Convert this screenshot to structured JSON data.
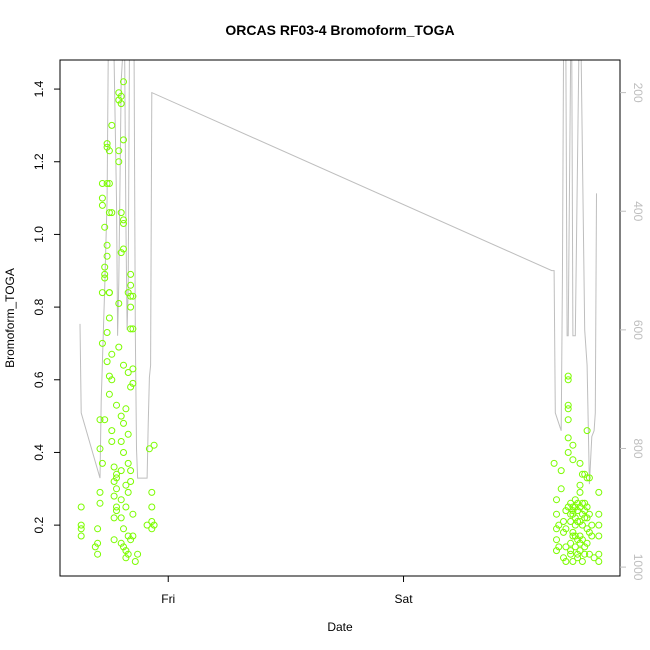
{
  "chart_data": {
    "type": "scatter",
    "title": "ORCAS RF03-4 Bromoform_TOGA",
    "xlabel": "Date",
    "ylabel": "Bromoform_TOGA",
    "x_ticks": [
      "Fri",
      "Sat"
    ],
    "y_ticks": [
      "0.2",
      "0.4",
      "0.6",
      "0.8",
      "1.0",
      "1.2",
      "1.4"
    ],
    "y_right_ticks": [
      "200",
      "400",
      "600",
      "800",
      "1000"
    ],
    "x_range_days": [
      -0.46,
      1.92
    ],
    "y_range": [
      0.06,
      1.48
    ],
    "y_right_range": [
      1015,
      145
    ],
    "y_right_reversed": true,
    "grid": false,
    "colors": {
      "points": "#7cfc00",
      "line": "#bebebe",
      "axis": "#000000"
    },
    "series": [
      {
        "kind": "points",
        "points": [
          [
            -0.37,
            0.25
          ],
          [
            -0.37,
            0.2
          ],
          [
            -0.37,
            0.19
          ],
          [
            -0.37,
            0.17
          ],
          [
            -0.31,
            0.14
          ],
          [
            -0.3,
            0.19
          ],
          [
            -0.3,
            0.12
          ],
          [
            -0.3,
            0.15
          ],
          [
            -0.29,
            0.26
          ],
          [
            -0.29,
            0.29
          ],
          [
            -0.29,
            0.41
          ],
          [
            -0.29,
            0.49
          ],
          [
            -0.28,
            0.37
          ],
          [
            -0.28,
            0.84
          ],
          [
            -0.28,
            0.7
          ],
          [
            -0.28,
            1.1
          ],
          [
            -0.28,
            1.14
          ],
          [
            -0.28,
            1.08
          ],
          [
            -0.27,
            0.91
          ],
          [
            -0.27,
            1.02
          ],
          [
            -0.27,
            0.88
          ],
          [
            -0.27,
            0.89
          ],
          [
            -0.27,
            0.49
          ],
          [
            -0.26,
            1.25
          ],
          [
            -0.26,
            1.24
          ],
          [
            -0.26,
            1.14
          ],
          [
            -0.26,
            0.97
          ],
          [
            -0.26,
            0.94
          ],
          [
            -0.26,
            0.73
          ],
          [
            -0.26,
            0.65
          ],
          [
            -0.25,
            0.84
          ],
          [
            -0.25,
            0.84
          ],
          [
            -0.25,
            1.06
          ],
          [
            -0.25,
            1.14
          ],
          [
            -0.25,
            1.23
          ],
          [
            -0.25,
            0.77
          ],
          [
            -0.25,
            0.61
          ],
          [
            -0.25,
            0.56
          ],
          [
            -0.24,
            1.3
          ],
          [
            -0.24,
            1.06
          ],
          [
            -0.24,
            0.67
          ],
          [
            -0.24,
            0.6
          ],
          [
            -0.24,
            0.46
          ],
          [
            -0.24,
            0.43
          ],
          [
            -0.23,
            0.36
          ],
          [
            -0.23,
            0.32
          ],
          [
            -0.23,
            0.28
          ],
          [
            -0.23,
            0.22
          ],
          [
            -0.23,
            0.16
          ],
          [
            -0.22,
            0.3
          ],
          [
            -0.22,
            0.25
          ],
          [
            -0.22,
            0.24
          ],
          [
            -0.22,
            0.34
          ],
          [
            -0.22,
            0.33
          ],
          [
            -0.22,
            0.53
          ],
          [
            -0.21,
            1.39
          ],
          [
            -0.21,
            1.37
          ],
          [
            -0.21,
            1.23
          ],
          [
            -0.21,
            1.2
          ],
          [
            -0.21,
            0.81
          ],
          [
            -0.21,
            0.69
          ],
          [
            -0.2,
            1.38
          ],
          [
            -0.2,
            1.36
          ],
          [
            -0.2,
            1.06
          ],
          [
            -0.2,
            0.95
          ],
          [
            -0.2,
            0.5
          ],
          [
            -0.2,
            0.43
          ],
          [
            -0.2,
            0.35
          ],
          [
            -0.2,
            0.27
          ],
          [
            -0.2,
            0.22
          ],
          [
            -0.2,
            0.15
          ],
          [
            -0.19,
            1.42
          ],
          [
            -0.19,
            1.26
          ],
          [
            -0.19,
            1.04
          ],
          [
            -0.19,
            1.03
          ],
          [
            -0.19,
            0.96
          ],
          [
            -0.19,
            0.64
          ],
          [
            -0.19,
            0.48
          ],
          [
            -0.19,
            0.4
          ],
          [
            -0.19,
            0.19
          ],
          [
            -0.19,
            0.14
          ],
          [
            -0.18,
            0.52
          ],
          [
            -0.18,
            0.31
          ],
          [
            -0.18,
            0.25
          ],
          [
            -0.18,
            0.13
          ],
          [
            -0.18,
            0.11
          ],
          [
            -0.17,
            0.84
          ],
          [
            -0.17,
            0.62
          ],
          [
            -0.17,
            0.45
          ],
          [
            -0.17,
            0.37
          ],
          [
            -0.17,
            0.29
          ],
          [
            -0.17,
            0.17
          ],
          [
            -0.17,
            0.12
          ],
          [
            -0.16,
            0.89
          ],
          [
            -0.16,
            0.86
          ],
          [
            -0.16,
            0.83
          ],
          [
            -0.16,
            0.8
          ],
          [
            -0.16,
            0.74
          ],
          [
            -0.16,
            0.58
          ],
          [
            -0.16,
            0.35
          ],
          [
            -0.16,
            0.32
          ],
          [
            -0.16,
            0.16
          ],
          [
            -0.15,
            0.83
          ],
          [
            -0.15,
            0.74
          ],
          [
            -0.15,
            0.63
          ],
          [
            -0.15,
            0.59
          ],
          [
            -0.15,
            0.23
          ],
          [
            -0.15,
            0.17
          ],
          [
            -0.14,
            0.1
          ],
          [
            -0.13,
            0.12
          ],
          [
            -0.09,
            0.2
          ],
          [
            -0.08,
            0.41
          ],
          [
            -0.07,
            0.29
          ],
          [
            -0.07,
            0.25
          ],
          [
            -0.07,
            0.21
          ],
          [
            -0.07,
            0.19
          ],
          [
            -0.06,
            0.42
          ],
          [
            -0.06,
            0.2
          ],
          [
            1.64,
            0.37
          ],
          [
            1.65,
            0.27
          ],
          [
            1.65,
            0.23
          ],
          [
            1.65,
            0.19
          ],
          [
            1.65,
            0.16
          ],
          [
            1.65,
            0.13
          ],
          [
            1.66,
            0.2
          ],
          [
            1.66,
            0.14
          ],
          [
            1.67,
            0.35
          ],
          [
            1.67,
            0.3
          ],
          [
            1.68,
            0.21
          ],
          [
            1.68,
            0.18
          ],
          [
            1.68,
            0.11
          ],
          [
            1.69,
            0.24
          ],
          [
            1.69,
            0.19
          ],
          [
            1.69,
            0.14
          ],
          [
            1.69,
            0.1
          ],
          [
            1.7,
            0.53
          ],
          [
            1.7,
            0.52
          ],
          [
            1.7,
            0.6
          ],
          [
            1.7,
            0.61
          ],
          [
            1.7,
            0.49
          ],
          [
            1.7,
            0.44
          ],
          [
            1.7,
            0.4
          ],
          [
            1.7,
            0.25
          ],
          [
            1.71,
            0.26
          ],
          [
            1.71,
            0.23
          ],
          [
            1.71,
            0.21
          ],
          [
            1.71,
            0.15
          ],
          [
            1.71,
            0.13
          ],
          [
            1.71,
            0.12
          ],
          [
            1.72,
            0.42
          ],
          [
            1.72,
            0.38
          ],
          [
            1.72,
            0.25
          ],
          [
            1.72,
            0.24
          ],
          [
            1.72,
            0.23
          ],
          [
            1.72,
            0.18
          ],
          [
            1.72,
            0.17
          ],
          [
            1.72,
            0.1
          ],
          [
            1.73,
            0.27
          ],
          [
            1.73,
            0.25
          ],
          [
            1.73,
            0.22
          ],
          [
            1.73,
            0.2
          ],
          [
            1.73,
            0.17
          ],
          [
            1.73,
            0.14
          ],
          [
            1.74,
            0.26
          ],
          [
            1.74,
            0.24
          ],
          [
            1.74,
            0.21
          ],
          [
            1.74,
            0.16
          ],
          [
            1.74,
            0.12
          ],
          [
            1.74,
            0.11
          ],
          [
            1.75,
            0.37
          ],
          [
            1.75,
            0.31
          ],
          [
            1.75,
            0.29
          ],
          [
            1.75,
            0.25
          ],
          [
            1.75,
            0.21
          ],
          [
            1.75,
            0.17
          ],
          [
            1.75,
            0.15
          ],
          [
            1.75,
            0.13
          ],
          [
            1.76,
            0.34
          ],
          [
            1.76,
            0.26
          ],
          [
            1.76,
            0.23
          ],
          [
            1.76,
            0.2
          ],
          [
            1.76,
            0.16
          ],
          [
            1.76,
            0.1
          ],
          [
            1.77,
            0.34
          ],
          [
            1.77,
            0.26
          ],
          [
            1.77,
            0.24
          ],
          [
            1.77,
            0.22
          ],
          [
            1.77,
            0.14
          ],
          [
            1.77,
            0.12
          ],
          [
            1.78,
            0.46
          ],
          [
            1.78,
            0.33
          ],
          [
            1.78,
            0.25
          ],
          [
            1.78,
            0.22
          ],
          [
            1.78,
            0.19
          ],
          [
            1.78,
            0.15
          ],
          [
            1.79,
            0.33
          ],
          [
            1.79,
            0.23
          ],
          [
            1.79,
            0.18
          ],
          [
            1.79,
            0.12
          ],
          [
            1.8,
            0.2
          ],
          [
            1.8,
            0.17
          ],
          [
            1.81,
            0.11
          ],
          [
            1.83,
            0.29
          ],
          [
            1.83,
            0.23
          ],
          [
            1.83,
            0.2
          ],
          [
            1.83,
            0.17
          ],
          [
            1.83,
            0.12
          ],
          [
            1.83,
            0.1
          ]
        ]
      },
      {
        "kind": "line",
        "axis": "right",
        "points": [
          [
            -0.375,
            590
          ],
          [
            -0.37,
            740
          ],
          [
            -0.29,
            850
          ],
          [
            -0.285,
            720
          ],
          [
            -0.27,
            530
          ],
          [
            -0.26,
            380
          ],
          [
            -0.255,
            100
          ],
          [
            -0.25,
            100
          ],
          [
            -0.245,
            100
          ],
          [
            -0.24,
            90
          ],
          [
            -0.235,
            90
          ],
          [
            -0.23,
            100
          ],
          [
            -0.22,
            380
          ],
          [
            -0.215,
            610
          ],
          [
            -0.21,
            520
          ],
          [
            -0.2,
            180
          ],
          [
            -0.195,
            100
          ],
          [
            -0.19,
            100
          ],
          [
            -0.185,
            100
          ],
          [
            -0.18,
            420
          ],
          [
            -0.175,
            600
          ],
          [
            -0.17,
            530
          ],
          [
            -0.165,
            130
          ],
          [
            -0.155,
            100
          ],
          [
            -0.145,
            100
          ],
          [
            -0.14,
            600
          ],
          [
            -0.135,
            800
          ],
          [
            -0.13,
            850
          ],
          [
            -0.09,
            850
          ],
          [
            -0.085,
            760
          ],
          [
            -0.08,
            680
          ],
          [
            -0.075,
            660
          ],
          [
            -0.07,
            200
          ],
          [
            1.63,
            500
          ],
          [
            1.64,
            500
          ],
          [
            1.645,
            740
          ],
          [
            1.67,
            770
          ],
          [
            1.675,
            520
          ],
          [
            1.68,
            100
          ],
          [
            1.685,
            110
          ],
          [
            1.69,
            100
          ],
          [
            1.695,
            610
          ],
          [
            1.7,
            610
          ],
          [
            1.71,
            100
          ],
          [
            1.715,
            100
          ],
          [
            1.72,
            610
          ],
          [
            1.73,
            610
          ],
          [
            1.745,
            100
          ],
          [
            1.75,
            100
          ],
          [
            1.755,
            100
          ],
          [
            1.77,
            600
          ],
          [
            1.78,
            660
          ],
          [
            1.79,
            860
          ],
          [
            1.8,
            780
          ],
          [
            1.81,
            770
          ],
          [
            1.815,
            740
          ],
          [
            1.82,
            370
          ]
        ]
      }
    ]
  }
}
